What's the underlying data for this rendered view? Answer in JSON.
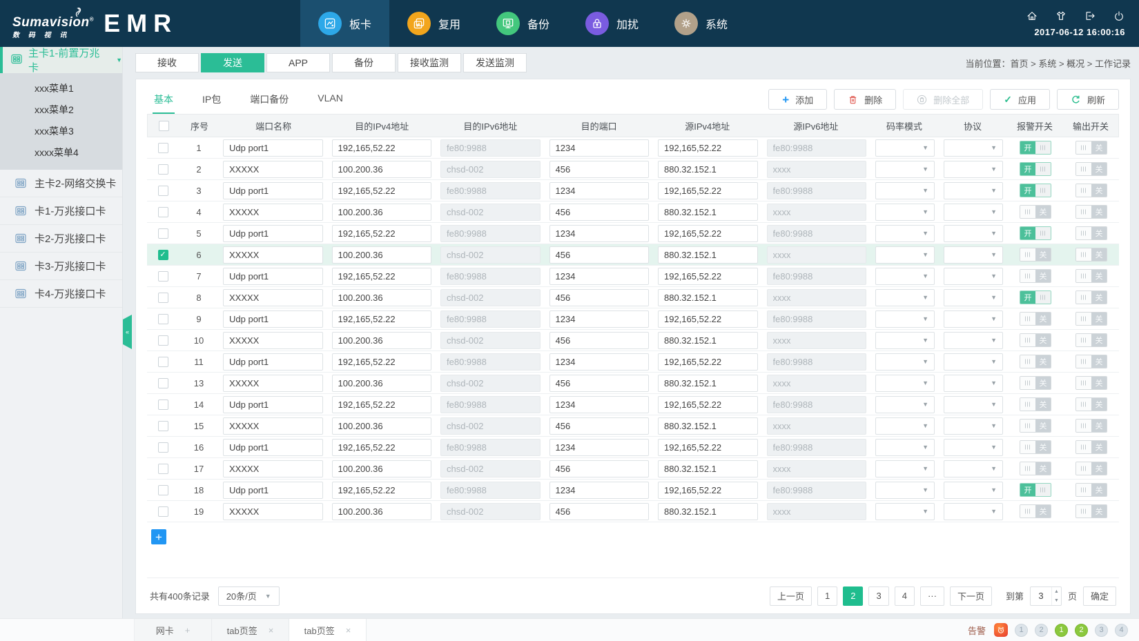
{
  "header": {
    "brand": "Sumavision",
    "brand_reg": "®",
    "brand_sub": "数 码 视 讯",
    "product": "EMR",
    "nav": [
      {
        "label": "板卡",
        "icon": "board",
        "color": "#2da8e8",
        "active": true
      },
      {
        "label": "复用",
        "icon": "mux",
        "color": "#f2a51c",
        "active": false
      },
      {
        "label": "备份",
        "icon": "backup",
        "color": "#43c77d",
        "active": false
      },
      {
        "label": "加扰",
        "icon": "scramble",
        "color": "#7a5ce0",
        "active": false
      },
      {
        "label": "系统",
        "icon": "system",
        "color": "#b2a18a",
        "active": false
      }
    ],
    "icons": [
      {
        "name": "home"
      },
      {
        "name": "theme"
      },
      {
        "name": "logout"
      },
      {
        "name": "power"
      }
    ],
    "datetime": "2017-06-12 16:00:16"
  },
  "sidebar": {
    "active_item": "主卡1-前置万兆卡",
    "submenu": [
      "xxx菜单1",
      "xxx菜单2",
      "xxx菜单3",
      "xxxx菜单4"
    ],
    "items": [
      "主卡2-网络交换卡",
      "卡1-万兆接口卡",
      "卡2-万兆接口卡",
      "卡3-万兆接口卡",
      "卡4-万兆接口卡"
    ],
    "collapse_glyph": "«"
  },
  "main_tabs": [
    {
      "label": "接收",
      "active": false
    },
    {
      "label": "发送",
      "active": true
    },
    {
      "label": "APP",
      "active": false
    },
    {
      "label": "备份",
      "active": false
    },
    {
      "label": "接收监测",
      "active": false
    },
    {
      "label": "发送监测",
      "active": false
    }
  ],
  "breadcrumb": "当前位置：首页 > 系统 > 概况 > 工作记录",
  "sub_tabs": [
    {
      "label": "基本",
      "active": true
    },
    {
      "label": "IP包",
      "active": false
    },
    {
      "label": "端口备份",
      "active": false
    },
    {
      "label": "VLAN",
      "active": false
    }
  ],
  "toolbar": {
    "add": "添加",
    "delete": "删除",
    "delete_all": "删除全部",
    "apply": "应用",
    "refresh": "刷新"
  },
  "table": {
    "columns": [
      "序号",
      "端口名称",
      "目的IPv4地址",
      "目的IPv6地址",
      "目的端口",
      "源IPv4地址",
      "源IPv6地址",
      "码率模式",
      "协议",
      "报警开关",
      "输出开关"
    ],
    "toggle_on_label": "开",
    "toggle_off_label": "关",
    "rows": [
      {
        "no": "1",
        "port": "Udp port1",
        "dst4": "192,165,52.22",
        "dst6": "fe80:9988",
        "dport": "1234",
        "src4": "192,165,52.22",
        "src6": "fe80:9988",
        "alarm": true,
        "output": false,
        "checked": false
      },
      {
        "no": "2",
        "port": "XXXXX",
        "dst4": "100.200.36",
        "dst6": "chsd-002",
        "dport": "456",
        "src4": "880.32.152.1",
        "src6": "xxxx",
        "alarm": true,
        "output": false,
        "checked": false
      },
      {
        "no": "3",
        "port": "Udp port1",
        "dst4": "192,165,52.22",
        "dst6": "fe80:9988",
        "dport": "1234",
        "src4": "192,165,52.22",
        "src6": "fe80:9988",
        "alarm": true,
        "output": false,
        "checked": false
      },
      {
        "no": "4",
        "port": "XXXXX",
        "dst4": "100.200.36",
        "dst6": "chsd-002",
        "dport": "456",
        "src4": "880.32.152.1",
        "src6": "xxxx",
        "alarm": false,
        "output": false,
        "checked": false
      },
      {
        "no": "5",
        "port": "Udp port1",
        "dst4": "192,165,52.22",
        "dst6": "fe80:9988",
        "dport": "1234",
        "src4": "192,165,52.22",
        "src6": "fe80:9988",
        "alarm": true,
        "output": false,
        "checked": false
      },
      {
        "no": "6",
        "port": "XXXXX",
        "dst4": "100.200.36",
        "dst6": "chsd-002",
        "dport": "456",
        "src4": "880.32.152.1",
        "src6": "xxxx",
        "alarm": false,
        "output": false,
        "checked": true
      },
      {
        "no": "7",
        "port": "Udp port1",
        "dst4": "192,165,52.22",
        "dst6": "fe80:9988",
        "dport": "1234",
        "src4": "192,165,52.22",
        "src6": "fe80:9988",
        "alarm": false,
        "output": false,
        "checked": false
      },
      {
        "no": "8",
        "port": "XXXXX",
        "dst4": "100.200.36",
        "dst6": "chsd-002",
        "dport": "456",
        "src4": "880.32.152.1",
        "src6": "xxxx",
        "alarm": true,
        "output": false,
        "checked": false
      },
      {
        "no": "9",
        "port": "Udp port1",
        "dst4": "192,165,52.22",
        "dst6": "fe80:9988",
        "dport": "1234",
        "src4": "192,165,52.22",
        "src6": "fe80:9988",
        "alarm": false,
        "output": false,
        "checked": false
      },
      {
        "no": "10",
        "port": "XXXXX",
        "dst4": "100.200.36",
        "dst6": "chsd-002",
        "dport": "456",
        "src4": "880.32.152.1",
        "src6": "xxxx",
        "alarm": false,
        "output": false,
        "checked": false
      },
      {
        "no": "11",
        "port": "Udp port1",
        "dst4": "192,165,52.22",
        "dst6": "fe80:9988",
        "dport": "1234",
        "src4": "192,165,52.22",
        "src6": "fe80:9988",
        "alarm": false,
        "output": false,
        "checked": false
      },
      {
        "no": "13",
        "port": "XXXXX",
        "dst4": "100.200.36",
        "dst6": "chsd-002",
        "dport": "456",
        "src4": "880.32.152.1",
        "src6": "xxxx",
        "alarm": false,
        "output": false,
        "checked": false
      },
      {
        "no": "14",
        "port": "Udp port1",
        "dst4": "192,165,52.22",
        "dst6": "fe80:9988",
        "dport": "1234",
        "src4": "192,165,52.22",
        "src6": "fe80:9988",
        "alarm": false,
        "output": false,
        "checked": false
      },
      {
        "no": "15",
        "port": "XXXXX",
        "dst4": "100.200.36",
        "dst6": "chsd-002",
        "dport": "456",
        "src4": "880.32.152.1",
        "src6": "xxxx",
        "alarm": false,
        "output": false,
        "checked": false
      },
      {
        "no": "16",
        "port": "Udp port1",
        "dst4": "192,165,52.22",
        "dst6": "fe80:9988",
        "dport": "1234",
        "src4": "192,165,52.22",
        "src6": "fe80:9988",
        "alarm": false,
        "output": false,
        "checked": false
      },
      {
        "no": "17",
        "port": "XXXXX",
        "dst4": "100.200.36",
        "dst6": "chsd-002",
        "dport": "456",
        "src4": "880.32.152.1",
        "src6": "xxxx",
        "alarm": false,
        "output": false,
        "checked": false
      },
      {
        "no": "18",
        "port": "Udp port1",
        "dst4": "192,165,52.22",
        "dst6": "fe80:9988",
        "dport": "1234",
        "src4": "192,165,52.22",
        "src6": "fe80:9988",
        "alarm": true,
        "output": false,
        "checked": false
      },
      {
        "no": "19",
        "port": "XXXXX",
        "dst4": "100.200.36",
        "dst6": "chsd-002",
        "dport": "456",
        "src4": "880.32.152.1",
        "src6": "xxxx",
        "alarm": false,
        "output": false,
        "checked": false
      }
    ]
  },
  "footer": {
    "total": "共有400条记录",
    "page_size": "20条/页",
    "prev": "上一页",
    "next": "下一页",
    "pages": [
      {
        "label": "1",
        "active": false
      },
      {
        "label": "2",
        "active": true
      },
      {
        "label": "3",
        "active": false
      },
      {
        "label": "4",
        "active": false
      },
      {
        "label": "···",
        "active": false
      }
    ],
    "goto_label": "到第",
    "goto_value": "3",
    "goto_suffix": "页",
    "confirm": "确定"
  },
  "bottom_bar": {
    "tabs": [
      {
        "label": "网卡",
        "action": "add",
        "active": false
      },
      {
        "label": "tab页签",
        "action": "close",
        "active": false
      },
      {
        "label": "tab页签",
        "action": "close",
        "active": true
      }
    ],
    "alarm_label": "告警",
    "status": [
      {
        "type": "alarm",
        "label": ""
      },
      {
        "type": "gray",
        "label": "1"
      },
      {
        "type": "gray",
        "label": "2"
      },
      {
        "type": "green",
        "label": "1"
      },
      {
        "type": "green",
        "label": "2"
      },
      {
        "type": "gray",
        "label": "3"
      },
      {
        "type": "gray",
        "label": "4"
      }
    ]
  },
  "colors": {
    "accent_green": "#2bbd96",
    "header_bg": "#10374f",
    "nav_active_bg": "#1b4f6f",
    "selected_row_bg": "#e4f4ee",
    "add_blue": "#2196f3",
    "delete_red": "#e05b52",
    "page_active": "#1fbd8e",
    "badge_green": "#8bc83e",
    "alarm_red": "#e8432e"
  }
}
